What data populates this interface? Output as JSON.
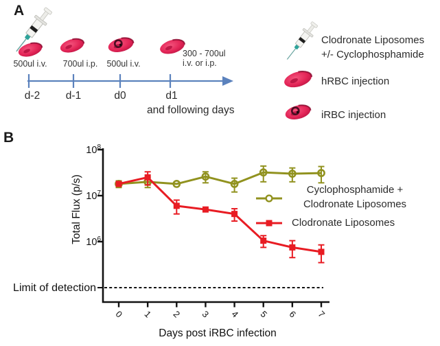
{
  "panel_a": {
    "label": "A",
    "timeline": {
      "axis_color": "#5b82bd",
      "events": [
        {
          "dose": "500ul i.v.",
          "day": "d-2",
          "icon": "hrbc-icon"
        },
        {
          "dose": "700ul i.p.",
          "day": "d-1",
          "icon": "hrbc-icon"
        },
        {
          "dose": "500ul i.v.",
          "day": "d0",
          "icon": "irbc-icon"
        },
        {
          "dose": "300 - 700ul",
          "dose_line2": "i.v. or i.p.",
          "day": "d1",
          "icon": "hrbc-icon"
        }
      ],
      "followup_note": "and following days"
    },
    "legend": [
      {
        "icon": "syringe-icon",
        "lines": [
          "Clodronate Liposomes",
          "+/- Cyclophosphamide"
        ]
      },
      {
        "icon": "hrbc-icon",
        "lines": [
          "hRBC injection"
        ]
      },
      {
        "icon": "irbc-icon",
        "lines": [
          "iRBC injection"
        ]
      }
    ]
  },
  "panel_b": {
    "label": "B"
  },
  "chart_data": {
    "type": "line",
    "title": "",
    "xlabel": "Days post iRBC infection",
    "ylabel": "Total Flux (p/s)",
    "x": [
      0,
      1,
      2,
      3,
      4,
      5,
      6,
      7
    ],
    "yscale": "log",
    "ylim": [
      50000,
      100000000
    ],
    "grid": false,
    "legend_position": "right-inside",
    "yticks": [
      {
        "base": "10",
        "exp": "8",
        "value": 100000000
      },
      {
        "base": "10",
        "exp": "7",
        "value": 10000000
      },
      {
        "base": "10",
        "exp": "6",
        "value": 1000000
      }
    ],
    "limit_of_detection": {
      "label": "Limit of detection",
      "value": 100000
    },
    "series": [
      {
        "name": "Cyclophosphamide + Clodronate Liposomes",
        "label_lines": [
          "Cyclophosphamide +",
          "Clodronate Liposomes"
        ],
        "color": "#91921f",
        "marker": "open-circle",
        "values": [
          18000000,
          20000000,
          18000000,
          26000000,
          18000000,
          32000000,
          30000000,
          31000000
        ],
        "error": [
          3000000,
          5000000,
          0,
          7000000,
          6000000,
          12000000,
          10000000,
          12000000
        ]
      },
      {
        "name": "Clodronate Liposomes",
        "label_lines": [
          "Clodronate Liposomes"
        ],
        "color": "#e81c23",
        "marker": "square",
        "values": [
          18000000,
          25000000,
          6000000,
          5000000,
          4000000,
          1050000,
          750000,
          600000
        ],
        "error": [
          2000000,
          8000000,
          2000000,
          0,
          1200000,
          300000,
          300000,
          250000
        ]
      }
    ]
  }
}
